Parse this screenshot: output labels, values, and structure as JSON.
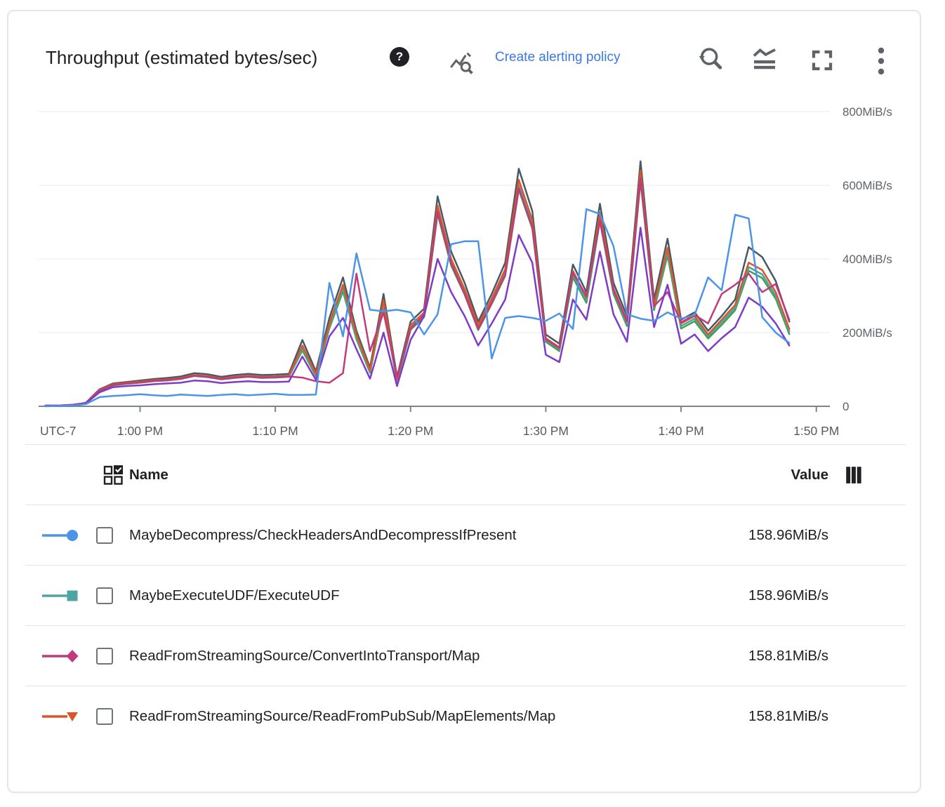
{
  "header": {
    "title": "Throughput (estimated bytes/sec)",
    "help_glyph": "?",
    "create_alerting_policy": "Create alerting policy",
    "link_color": "#3b78e7"
  },
  "chart_data": {
    "type": "line",
    "title": "Throughput (estimated bytes/sec)",
    "grid": true,
    "legend_position": "table-below",
    "x_axis": {
      "timezone_label": "UTC-7",
      "tick_labels": [
        "1:00 PM",
        "1:10 PM",
        "1:20 PM",
        "1:30 PM",
        "1:40 PM",
        "1:50 PM"
      ],
      "tick_offsets_min": [
        0,
        10,
        20,
        30,
        40,
        50
      ],
      "domain_min": [
        -7.5,
        51
      ]
    },
    "y_axis": {
      "tick_labels": [
        "800MiB/s",
        "600MiB/s",
        "400MiB/s",
        "200MiB/s",
        "0"
      ],
      "tick_values": [
        800,
        600,
        400,
        200,
        0
      ],
      "range": [
        0,
        800
      ]
    },
    "sample_start_offset_min": -7,
    "sample_step_min": 1,
    "series": [
      {
        "name": "",
        "color": "#455a64",
        "marker": "none",
        "values": [
          2,
          2,
          3,
          10,
          46,
          62,
          66,
          70,
          74,
          77,
          81,
          90,
          87,
          80,
          85,
          88,
          85,
          86,
          88,
          180,
          95,
          240,
          350,
          205,
          105,
          305,
          80,
          230,
          265,
          570,
          420,
          335,
          230,
          305,
          390,
          645,
          530,
          195,
          170,
          385,
          310,
          550,
          335,
          245,
          665,
          290,
          455,
          235,
          255,
          205,
          245,
          290,
          432,
          405,
          340,
          230
        ]
      },
      {
        "name": "",
        "color": "#3ea04c",
        "marker": "none",
        "values": [
          1,
          2,
          3,
          9,
          41,
          57,
          61,
          64,
          68,
          70,
          74,
          82,
          79,
          73,
          77,
          80,
          77,
          78,
          80,
          152,
          82,
          212,
          312,
          182,
          91,
          273,
          65,
          208,
          242,
          522,
          382,
          303,
          207,
          278,
          354,
          588,
          482,
          175,
          150,
          350,
          281,
          502,
          305,
          218,
          612,
          261,
          410,
          211,
          231,
          184,
          221,
          261,
          368,
          348,
          292,
          196
        ]
      },
      {
        "name": "MaybeExecuteUDF/ExecuteUDF",
        "color": "#4da5a3",
        "marker": "square",
        "values": [
          1,
          2,
          4,
          9,
          42,
          58,
          62,
          65,
          69,
          71,
          75,
          83,
          80,
          74,
          78,
          81,
          78,
          79,
          81,
          158,
          85,
          218,
          320,
          188,
          94,
          280,
          68,
          214,
          248,
          532,
          390,
          310,
          213,
          285,
          362,
          600,
          492,
          180,
          155,
          358,
          288,
          512,
          312,
          225,
          625,
          268,
          420,
          218,
          238,
          190,
          228,
          268,
          378,
          358,
          300,
          203
        ]
      },
      {
        "name": "ReadFromStreamingSource/ReadFromPubSub/MapElements/Map",
        "color": "#dd5428",
        "marker": "triangle-down",
        "values": [
          1,
          2,
          4,
          9,
          44,
          60,
          64,
          67,
          71,
          73,
          77,
          85,
          82,
          76,
          80,
          83,
          80,
          81,
          83,
          165,
          88,
          225,
          330,
          195,
          98,
          288,
          72,
          220,
          255,
          545,
          400,
          318,
          220,
          292,
          372,
          615,
          505,
          185,
          160,
          368,
          295,
          525,
          320,
          232,
          640,
          275,
          430,
          225,
          245,
          195,
          235,
          275,
          390,
          370,
          310,
          210
        ]
      },
      {
        "name": "ReadFromStreamingSource/ConvertIntoTransport/Map",
        "color": "#c13a7e",
        "marker": "diamond",
        "values": [
          1,
          2,
          4,
          9,
          42,
          58,
          62,
          65,
          69,
          71,
          75,
          83,
          80,
          74,
          78,
          81,
          78,
          79,
          81,
          78,
          68,
          64,
          90,
          360,
          150,
          255,
          80,
          210,
          250,
          528,
          388,
          305,
          210,
          280,
          358,
          592,
          486,
          182,
          158,
          362,
          300,
          505,
          315,
          230,
          618,
          272,
          310,
          228,
          248,
          225,
          305,
          330,
          360,
          310,
          332,
          235
        ]
      },
      {
        "name": "",
        "color": "#7e3bc8",
        "marker": "none",
        "values": [
          1,
          1,
          3,
          8,
          38,
          52,
          55,
          57,
          60,
          62,
          64,
          70,
          68,
          63,
          66,
          68,
          66,
          66,
          67,
          135,
          72,
          190,
          240,
          155,
          75,
          200,
          55,
          180,
          245,
          400,
          310,
          245,
          165,
          225,
          290,
          465,
          390,
          140,
          120,
          290,
          235,
          420,
          250,
          175,
          485,
          215,
          330,
          170,
          195,
          150,
          185,
          215,
          295,
          270,
          225,
          165
        ]
      },
      {
        "name": "MaybeDecompress/CheckHeadersAndDecompressIfPresent",
        "color": "#4c94e8",
        "marker": "circle",
        "values": [
          0,
          1,
          2,
          6,
          25,
          28,
          30,
          33,
          30,
          28,
          32,
          30,
          28,
          31,
          33,
          30,
          32,
          34,
          31,
          31,
          32,
          335,
          190,
          415,
          262,
          258,
          262,
          255,
          195,
          250,
          440,
          448,
          448,
          130,
          240,
          245,
          240,
          232,
          252,
          210,
          535,
          522,
          435,
          250,
          238,
          232,
          255,
          238,
          248,
          350,
          315,
          520,
          510,
          242,
          200,
          172
        ]
      }
    ]
  },
  "table": {
    "columns": {
      "name": "Name",
      "value": "Value"
    },
    "rows": [
      {
        "marker": "circle",
        "color": "#4c94e8",
        "name": "MaybeDecompress/CheckHeadersAndDecompressIfPresent",
        "value": "158.96MiB/s",
        "checked": false
      },
      {
        "marker": "square",
        "color": "#4da5a3",
        "name": "MaybeExecuteUDF/ExecuteUDF",
        "value": "158.96MiB/s",
        "checked": false
      },
      {
        "marker": "diamond",
        "color": "#c13a7e",
        "name": "ReadFromStreamingSource/ConvertIntoTransport/Map",
        "value": "158.81MiB/s",
        "checked": false
      },
      {
        "marker": "triangle-down",
        "color": "#dd5428",
        "name": "ReadFromStreamingSource/ReadFromPubSub/MapElements/Map",
        "value": "158.81MiB/s",
        "checked": false
      }
    ]
  }
}
